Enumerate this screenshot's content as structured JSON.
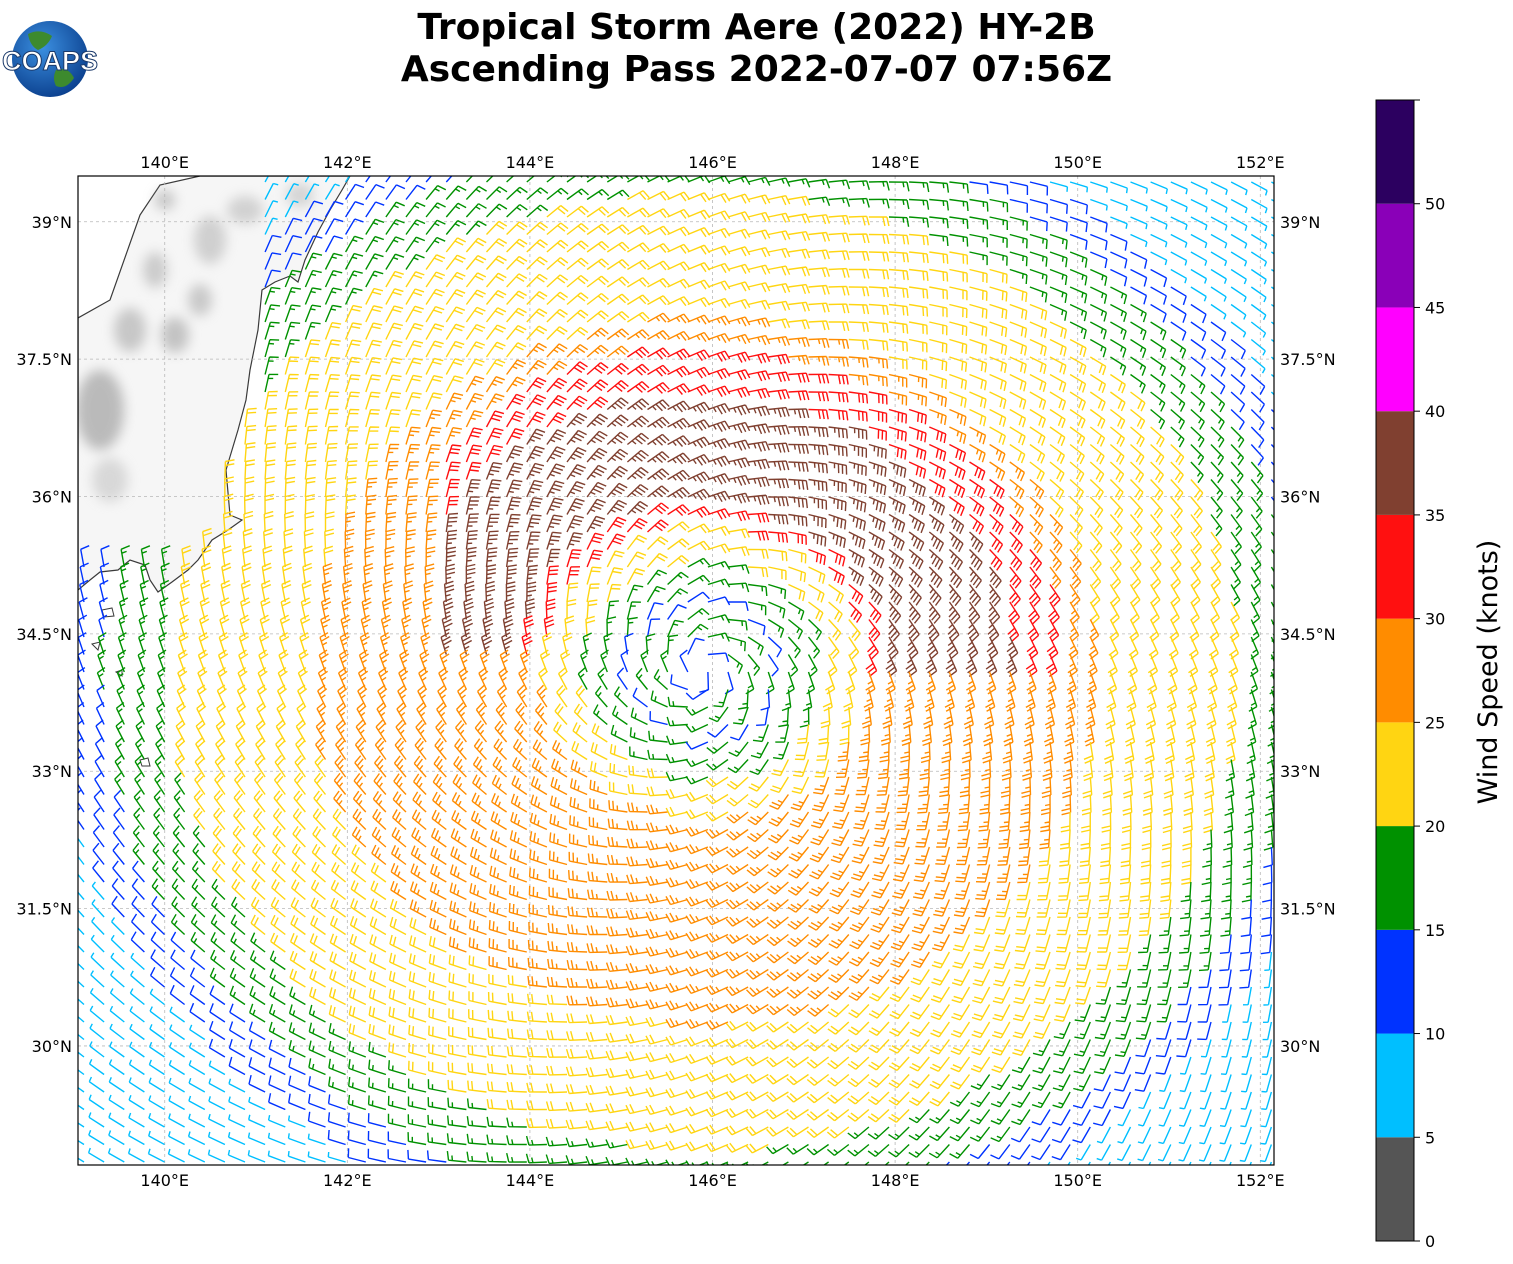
{
  "title_line1": "Tropical Storm Aere (2022) HY-2B",
  "title_line2": "Ascending Pass 2022-07-07 07:56Z",
  "logo_text": "COAPS",
  "map": {
    "lon_ticks": [
      {
        "value": 140,
        "label": "140°E"
      },
      {
        "value": 142,
        "label": "142°E"
      },
      {
        "value": 144,
        "label": "144°E"
      },
      {
        "value": 146,
        "label": "146°E"
      },
      {
        "value": 148,
        "label": "148°E"
      },
      {
        "value": 150,
        "label": "150°E"
      },
      {
        "value": 152,
        "label": "152°E"
      }
    ],
    "lat_ticks": [
      {
        "value": 30,
        "label": "30°N"
      },
      {
        "value": 31.5,
        "label": "31.5°N"
      },
      {
        "value": 33,
        "label": "33°N"
      },
      {
        "value": 34.5,
        "label": "34.5°N"
      },
      {
        "value": 36,
        "label": "36°N"
      },
      {
        "value": 37.5,
        "label": "37.5°N"
      },
      {
        "value": 39,
        "label": "39°N"
      }
    ],
    "lon_range": [
      139.05,
      152.15
    ],
    "lat_range": [
      28.7,
      39.5
    ],
    "storm_center": {
      "lon": 145.9,
      "lat": 34.1
    }
  },
  "colorbar": {
    "label": "Wind Speed (knots)",
    "tick_labels": [
      "0",
      "5",
      "10",
      "15",
      "20",
      "25",
      "30",
      "35",
      "40",
      "45",
      "50"
    ],
    "bands": [
      {
        "from": 0,
        "to": 5,
        "color": "#555555"
      },
      {
        "from": 5,
        "to": 10,
        "color": "#00bfff"
      },
      {
        "from": 10,
        "to": 15,
        "color": "#0033ff"
      },
      {
        "from": 15,
        "to": 20,
        "color": "#009100"
      },
      {
        "from": 20,
        "to": 25,
        "color": "#ffd512"
      },
      {
        "from": 25,
        "to": 30,
        "color": "#ff8c00"
      },
      {
        "from": 30,
        "to": 35,
        "color": "#ff1010"
      },
      {
        "from": 35,
        "to": 40,
        "color": "#804030"
      },
      {
        "from": 40,
        "to": 45,
        "color": "#ff00ff"
      },
      {
        "from": 45,
        "to": 50,
        "color": "#8a00b8"
      },
      {
        "from": 50,
        "to": 55,
        "color": "#2c0060"
      }
    ]
  }
}
